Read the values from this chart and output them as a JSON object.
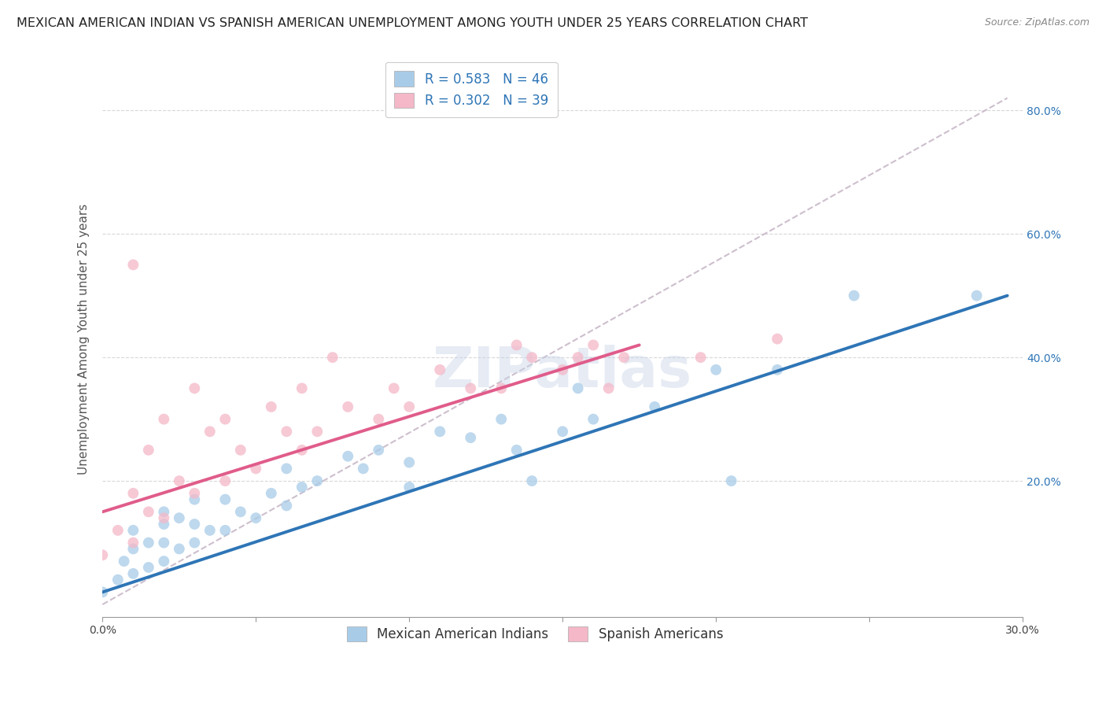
{
  "title": "MEXICAN AMERICAN INDIAN VS SPANISH AMERICAN UNEMPLOYMENT AMONG YOUTH UNDER 25 YEARS CORRELATION CHART",
  "source": "Source: ZipAtlas.com",
  "ylabel": "Unemployment Among Youth under 25 years",
  "xlim": [
    0.0,
    0.3
  ],
  "ylim": [
    -0.02,
    0.88
  ],
  "xticks": [
    0.0,
    0.05,
    0.1,
    0.15,
    0.2,
    0.25,
    0.3
  ],
  "xtick_labels": [
    "0.0%",
    "",
    "",
    "",
    "",
    "",
    "30.0%"
  ],
  "yticks": [
    0.0,
    0.2,
    0.4,
    0.6,
    0.8
  ],
  "ytick_labels_right": [
    "",
    "20.0%",
    "40.0%",
    "60.0%",
    "80.0%"
  ],
  "blue_R": 0.583,
  "blue_N": 46,
  "pink_R": 0.302,
  "pink_N": 39,
  "blue_color": "#a8cce8",
  "pink_color": "#f4b8c8",
  "blue_line_color": "#2e75b6",
  "pink_line_color": "#e05c8a",
  "ref_line_color": "#c8b8c8",
  "legend_label_blue": "Mexican American Indians",
  "legend_label_pink": "Spanish Americans",
  "watermark": "ZIPatlas",
  "blue_scatter_x": [
    0.0,
    0.005,
    0.007,
    0.01,
    0.01,
    0.01,
    0.015,
    0.015,
    0.02,
    0.02,
    0.02,
    0.02,
    0.025,
    0.025,
    0.03,
    0.03,
    0.03,
    0.035,
    0.04,
    0.04,
    0.045,
    0.05,
    0.055,
    0.06,
    0.06,
    0.065,
    0.07,
    0.08,
    0.085,
    0.09,
    0.1,
    0.1,
    0.11,
    0.12,
    0.13,
    0.135,
    0.14,
    0.15,
    0.155,
    0.16,
    0.18,
    0.2,
    0.205,
    0.22,
    0.245,
    0.285
  ],
  "blue_scatter_y": [
    0.02,
    0.04,
    0.07,
    0.05,
    0.09,
    0.12,
    0.06,
    0.1,
    0.07,
    0.1,
    0.13,
    0.15,
    0.09,
    0.14,
    0.1,
    0.13,
    0.17,
    0.12,
    0.12,
    0.17,
    0.15,
    0.14,
    0.18,
    0.16,
    0.22,
    0.19,
    0.2,
    0.24,
    0.22,
    0.25,
    0.23,
    0.19,
    0.28,
    0.27,
    0.3,
    0.25,
    0.2,
    0.28,
    0.35,
    0.3,
    0.32,
    0.38,
    0.2,
    0.38,
    0.5,
    0.5
  ],
  "pink_scatter_x": [
    0.0,
    0.005,
    0.01,
    0.01,
    0.01,
    0.015,
    0.015,
    0.02,
    0.02,
    0.025,
    0.03,
    0.03,
    0.035,
    0.04,
    0.04,
    0.045,
    0.05,
    0.055,
    0.06,
    0.065,
    0.065,
    0.07,
    0.075,
    0.08,
    0.09,
    0.095,
    0.1,
    0.11,
    0.12,
    0.13,
    0.135,
    0.14,
    0.15,
    0.155,
    0.16,
    0.165,
    0.17,
    0.195,
    0.22
  ],
  "pink_scatter_y": [
    0.08,
    0.12,
    0.1,
    0.18,
    0.55,
    0.15,
    0.25,
    0.14,
    0.3,
    0.2,
    0.18,
    0.35,
    0.28,
    0.2,
    0.3,
    0.25,
    0.22,
    0.32,
    0.28,
    0.25,
    0.35,
    0.28,
    0.4,
    0.32,
    0.3,
    0.35,
    0.32,
    0.38,
    0.35,
    0.35,
    0.42,
    0.4,
    0.38,
    0.4,
    0.42,
    0.35,
    0.4,
    0.4,
    0.43
  ],
  "blue_trend_x": [
    0.0,
    0.295
  ],
  "blue_trend_y": [
    0.02,
    0.5
  ],
  "pink_trend_x": [
    0.0,
    0.175
  ],
  "pink_trend_y": [
    0.15,
    0.42
  ],
  "ref_line_x": [
    0.0,
    0.295
  ],
  "ref_line_y": [
    0.0,
    0.82
  ],
  "background_color": "#ffffff",
  "grid_color": "#d8d8d8",
  "title_fontsize": 11.5,
  "axis_label_fontsize": 11,
  "tick_fontsize": 10,
  "legend_fontsize": 12,
  "watermark_fontsize": 52,
  "watermark_color": "#c8d4e8",
  "watermark_alpha": 0.45,
  "right_tick_color": "#2e75b6"
}
